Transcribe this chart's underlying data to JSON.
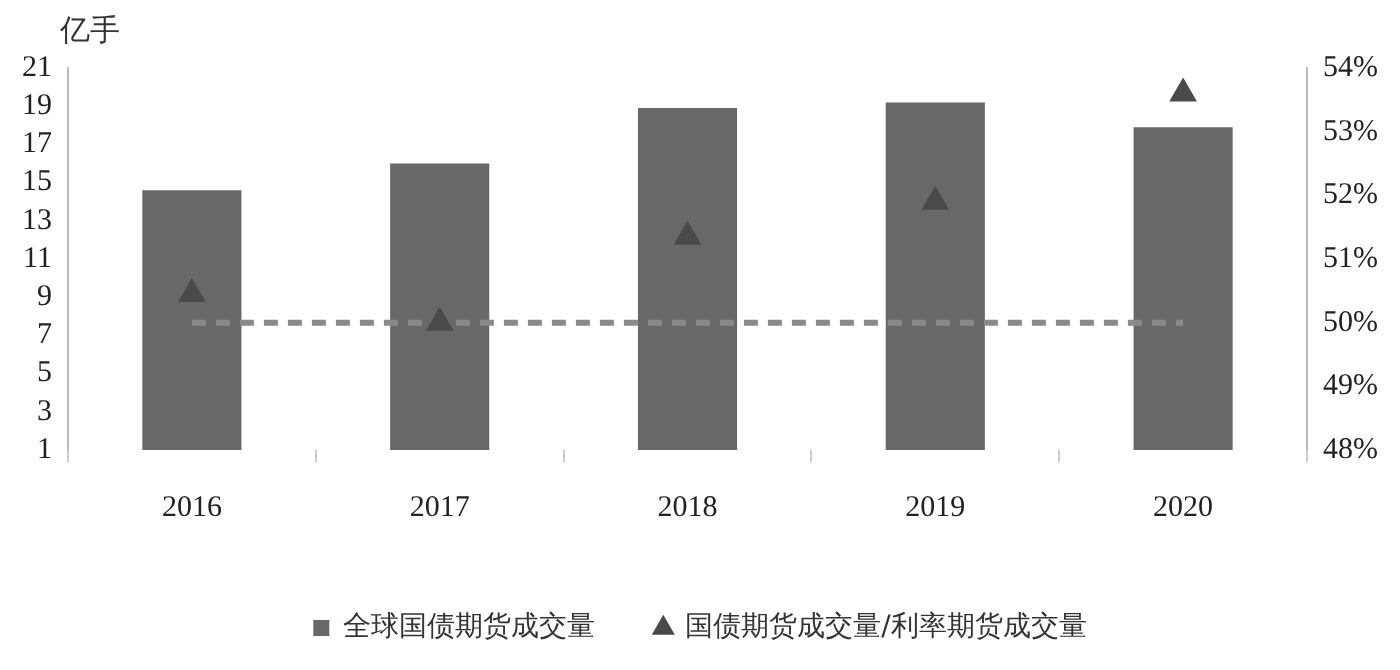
{
  "chart_data": {
    "type": "bar",
    "ylabel": "亿手",
    "categories": [
      "2016",
      "2017",
      "2018",
      "2019",
      "2020"
    ],
    "series": [
      {
        "name": "全球国债期货成交量",
        "color": "#686868",
        "values": [
          14.6,
          16.0,
          18.9,
          19.2,
          17.9
        ]
      },
      {
        "name": "国债期货成交量/利率期货成交量",
        "type": "scatter",
        "axis": "y2",
        "marker": "triangle",
        "color": "#4a4a4a",
        "values": [
          50.45,
          50.0,
          51.35,
          51.9,
          53.6
        ]
      },
      {
        "type": "line",
        "axis": "y2",
        "marker": "none",
        "line_style": "dashed",
        "color": "#8a8a8a",
        "values": [
          50,
          50,
          50,
          50,
          50
        ]
      }
    ],
    "ylim": [
      1,
      21
    ],
    "yticks": [
      1,
      3,
      5,
      7,
      9,
      11,
      13,
      15,
      17,
      19,
      21
    ],
    "y2lim": [
      48,
      54
    ],
    "y2ticks": [
      {
        "value": 48,
        "label": "48%"
      },
      {
        "value": 49,
        "label": "49%"
      },
      {
        "value": 50,
        "label": "50%"
      },
      {
        "value": 51,
        "label": "51%"
      },
      {
        "value": 52,
        "label": "52%"
      },
      {
        "value": 53,
        "label": "53%"
      },
      {
        "value": 54,
        "label": "54%"
      }
    ],
    "grid": false,
    "legend": "bottom"
  }
}
